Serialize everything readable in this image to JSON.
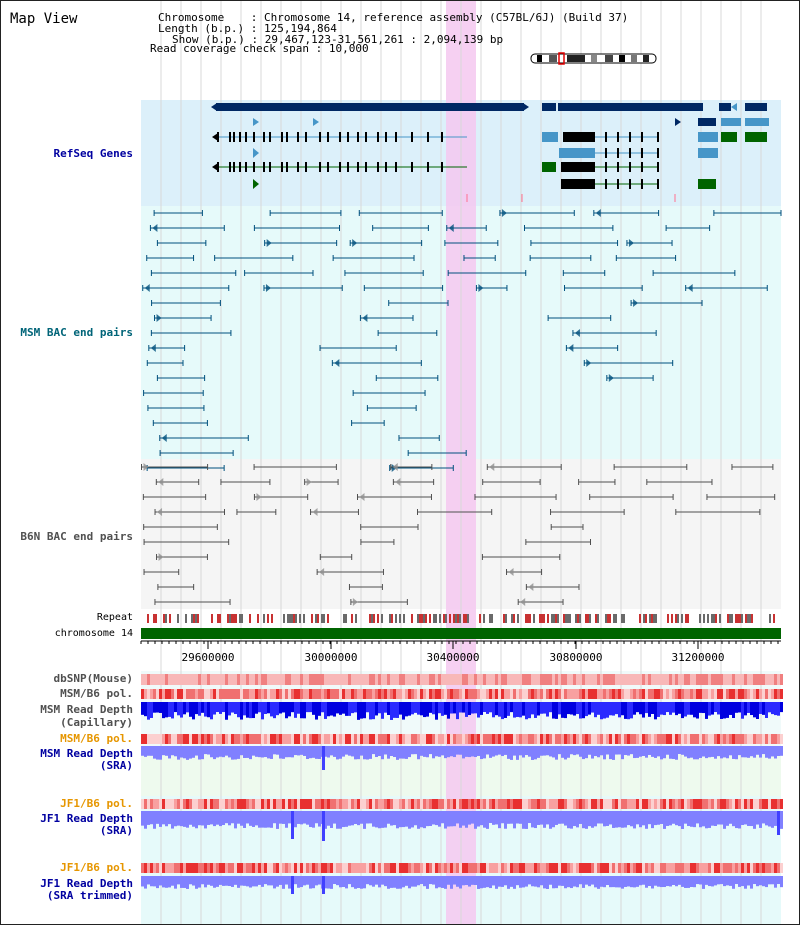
{
  "view_title": "Map View",
  "header": {
    "chromosome_key": "Chromosome",
    "chromosome_value": "Chromosome 14, reference assembly (C57BL/6J) (Build 37)",
    "length_key": "Length (b.p.)",
    "length_value": "125,194,864",
    "show_key": "Show (b.p.)",
    "show_value": "29,467,123-31,561,261 : 2,094,139 bp",
    "coverage_key": "Read coverage check span",
    "coverage_value": "10,000"
  },
  "tracks": {
    "refseq": "RefSeq Genes",
    "msm_bac": "MSM BAC end pairs",
    "b6n_bac": "B6N BAC end pairs",
    "repeat": "Repeat",
    "chromosome": "chromosome 14",
    "dbsnp": "dbSNP(Mouse)",
    "msm_b6_pol_1": "MSM/B6 pol.",
    "msm_depth_cap_1": "MSM Read Depth",
    "msm_depth_cap_2": "(Capillary)",
    "msm_b6_pol_2": "MSM/B6 pol.",
    "msm_depth_sra_1": "MSM Read Depth",
    "msm_depth_sra_2": "(SRA)",
    "jf1_b6_pol_1": "JF1/B6 pol.",
    "jf1_depth_sra_1": "JF1 Read Depth",
    "jf1_depth_sra_2": "(SRA)",
    "jf1_b6_pol_2": "JF1/B6 pol.",
    "jf1_depth_trim_1": "JF1 Read Depth",
    "jf1_depth_trim_2": "(SRA trimmed)"
  },
  "axis": {
    "ticks": [
      "29600000",
      "30000000",
      "30400000",
      "30800000",
      "31200000"
    ]
  },
  "colors": {
    "refseq_bg": "#dcf0fa",
    "msm_bg": "#e6fafa",
    "b6n_bg": "#f5f5f5",
    "highlight": "#f5c8f0",
    "gene_dark": "#002864",
    "gene_blue": "#4696c8",
    "gene_green": "#006400",
    "bac_teal": "#00507d",
    "bac_gray": "#505050",
    "chromosome_bar": "#006400",
    "depth_blue": "#0000ff",
    "depth_light": "#8080ff"
  }
}
